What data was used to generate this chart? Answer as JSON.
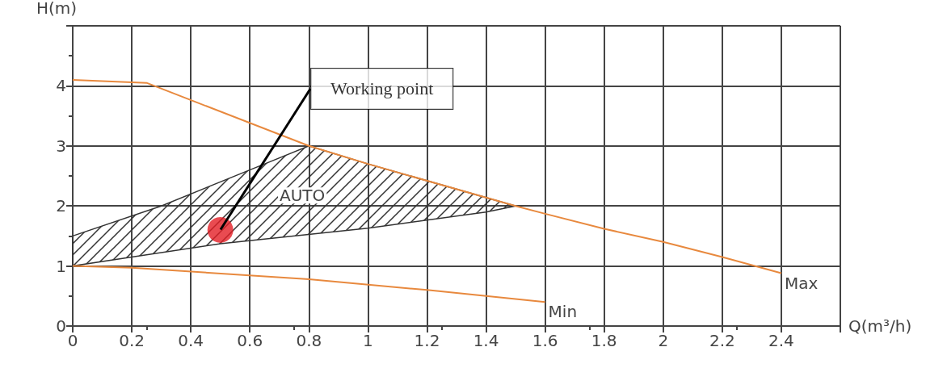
{
  "chart_data": {
    "type": "line",
    "xlabel": "Q(m³/h)",
    "ylabel": "H(m)",
    "xlim": [
      0,
      2.6
    ],
    "xticks": [
      0,
      0.2,
      0.4,
      0.6,
      0.8,
      1.0,
      1.2,
      1.4,
      1.6,
      1.8,
      2.0,
      2.2,
      2.4,
      {
        "value": 2.6,
        "label": null
      }
    ],
    "ylim": [
      0,
      5
    ],
    "yticks": [
      0,
      1,
      2,
      3,
      4,
      {
        "value": 5,
        "label": null
      }
    ],
    "grid": true,
    "marker": "none",
    "line_style": "solid",
    "series": [
      {
        "name": "Max",
        "color": "#e8893e",
        "x": [
          0,
          0.25,
          0.8,
          1.0,
          1.5,
          1.6,
          1.8,
          2.0,
          2.2,
          2.4
        ],
        "values": [
          4.1,
          4.05,
          3.0,
          2.7,
          2.0,
          1.87,
          1.62,
          1.4,
          1.15,
          0.88
        ]
      },
      {
        "name": "Min",
        "color": "#e8893e",
        "x": [
          0,
          0.2,
          0.8,
          1.2,
          1.6
        ],
        "values": [
          1.0,
          0.97,
          0.78,
          0.6,
          0.4
        ]
      },
      {
        "name": "AUTO",
        "type": "area",
        "color": "#333333",
        "x": [
          0,
          0.3,
          0.65,
          0.8,
          1.0,
          1.5,
          1.4,
          1.0,
          0.5,
          0.2,
          0
        ],
        "values": [
          1.5,
          2.0,
          2.7,
          3.0,
          2.7,
          2.0,
          1.9,
          1.63,
          1.37,
          1.15,
          1.0
        ]
      },
      {
        "type": "scatter",
        "marker": "circle",
        "color": "#e31e25",
        "x": [
          0.5
        ],
        "values": [
          1.6
        ]
      }
    ],
    "annotations": [
      {
        "text": "Working point",
        "x": 0.5,
        "y": 1.6
      }
    ]
  }
}
